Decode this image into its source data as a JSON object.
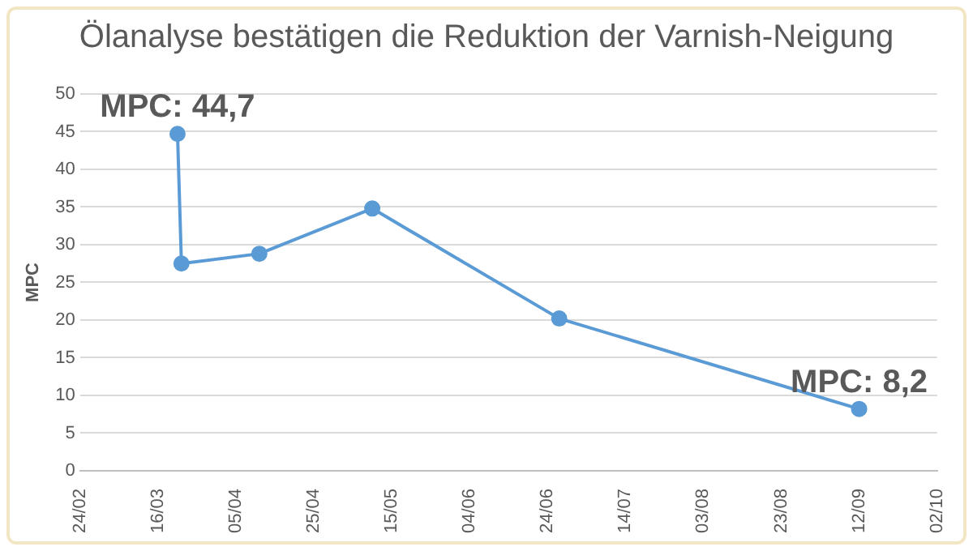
{
  "chart_data": {
    "type": "line",
    "title": "Ölanalyse bestätigen die Reduktion der Varnish-Neigung",
    "ylabel": "MPC",
    "x": [
      "--03-21",
      "--03-22",
      "--04-11",
      "--05-10",
      "--06-27",
      "--09-12"
    ],
    "series": [
      {
        "color": "#5b9bd5",
        "values": [
          44.7,
          27.5,
          28.8,
          34.8,
          20.2,
          8.2
        ]
      }
    ],
    "xlim": [
      "--02-24",
      "--10-02"
    ],
    "xticks": [
      {
        "value": "--02-24",
        "label": "24/02"
      },
      {
        "value": "--03-16",
        "label": "16/03"
      },
      {
        "value": "--04-05",
        "label": "05/04"
      },
      {
        "value": "--04-25",
        "label": "25/04"
      },
      {
        "value": "--05-15",
        "label": "15/05"
      },
      {
        "value": "--06-04",
        "label": "04/06"
      },
      {
        "value": "--06-24",
        "label": "24/06"
      },
      {
        "value": "--07-14",
        "label": "14/07"
      },
      {
        "value": "--08-03",
        "label": "03/08"
      },
      {
        "value": "--08-23",
        "label": "23/08"
      },
      {
        "value": "--09-12",
        "label": "12/09"
      },
      {
        "value": "--10-02",
        "label": "02/10"
      }
    ],
    "ylim": [
      0,
      50
    ],
    "yticks": [
      0,
      5,
      10,
      15,
      20,
      25,
      30,
      35,
      40,
      45,
      50
    ],
    "grid": "y",
    "legend": false,
    "marker": "circle",
    "line_style": "solid",
    "annotations": [
      {
        "text": "MPC: 44,7",
        "x": "--03-21",
        "y": 44.7
      },
      {
        "text": "MPC: 8,2",
        "x": "--09-12",
        "y": 8.2
      }
    ]
  }
}
